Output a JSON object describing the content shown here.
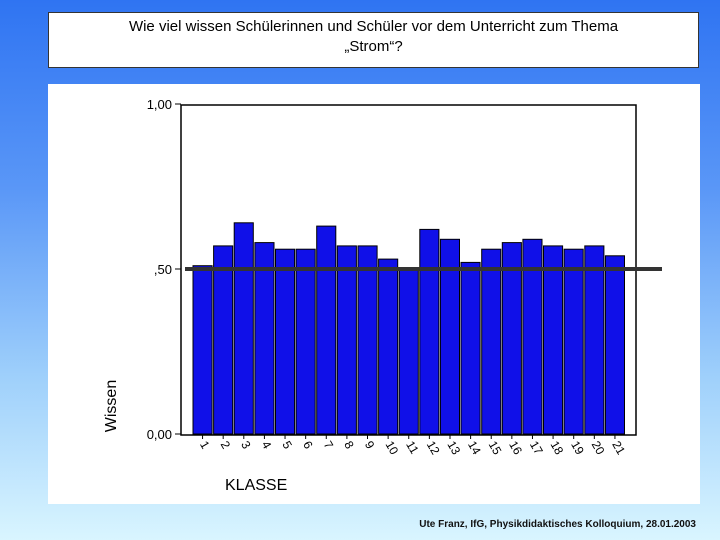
{
  "title": {
    "line1": "Wie viel wissen Schülerinnen und Schüler  vor dem Unterricht zum Thema",
    "line2": "„Strom“?"
  },
  "footer": "Ute Franz, IfG, Physikdidaktisches Kolloquium, 28.01.2003",
  "chart_data": {
    "type": "bar",
    "xlabel": "KLASSE",
    "ylabel": "Wissen",
    "ylim": [
      0,
      1
    ],
    "yticks": [
      {
        "value": 0,
        "label": "0,00"
      },
      {
        "value": 0.5,
        "label": ",50"
      },
      {
        "value": 1,
        "label": "1,00"
      }
    ],
    "reference_line": 0.5,
    "bar_color": "#1010e8",
    "categories": [
      "1",
      "2",
      "3",
      "4",
      "5",
      "6",
      "7",
      "8",
      "9",
      "10",
      "11",
      "12",
      "13",
      "14",
      "15",
      "16",
      "17",
      "18",
      "19",
      "20",
      "21"
    ],
    "values": [
      0.51,
      0.57,
      0.64,
      0.58,
      0.56,
      0.56,
      0.63,
      0.57,
      0.57,
      0.53,
      0.5,
      0.62,
      0.59,
      0.52,
      0.56,
      0.58,
      0.59,
      0.57,
      0.56,
      0.57,
      0.54
    ],
    "grid": false
  }
}
